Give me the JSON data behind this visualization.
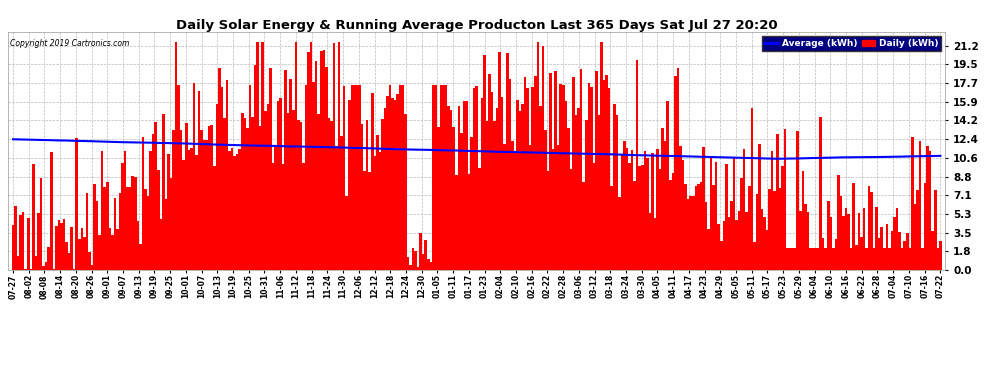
{
  "title": "Daily Solar Energy & Running Average Producton Last 365 Days Sat Jul 27 20:20",
  "copyright": "Copyright 2019 Cartronics.com",
  "bar_color": "#ff0000",
  "line_color": "#0000ff",
  "background_color": "#ffffff",
  "plot_bg_color": "#ffffff",
  "grid_color": "#bbbbbb",
  "yticks": [
    0.0,
    1.8,
    3.5,
    5.3,
    7.1,
    8.8,
    10.6,
    12.4,
    14.2,
    15.9,
    17.7,
    19.5,
    21.2
  ],
  "ymax": 22.5,
  "legend_labels": [
    "Average (kWh)",
    "Daily (kWh)"
  ],
  "legend_colors": [
    "#0000ff",
    "#ff0000"
  ],
  "legend_bg": "#000080",
  "x_labels": [
    "07-27",
    "08-02",
    "08-08",
    "08-14",
    "08-20",
    "08-26",
    "09-01",
    "09-07",
    "09-13",
    "09-19",
    "09-25",
    "10-01",
    "10-07",
    "10-13",
    "10-19",
    "10-25",
    "10-31",
    "11-06",
    "11-12",
    "11-18",
    "11-24",
    "11-30",
    "12-06",
    "12-12",
    "12-18",
    "12-24",
    "12-30",
    "01-05",
    "01-11",
    "01-17",
    "01-23",
    "02-04",
    "02-10",
    "02-16",
    "02-22",
    "02-28",
    "03-06",
    "03-12",
    "03-18",
    "03-24",
    "03-30",
    "04-05",
    "04-11",
    "04-17",
    "04-23",
    "04-29",
    "05-05",
    "05-11",
    "05-17",
    "05-23",
    "05-29",
    "06-04",
    "06-10",
    "06-16",
    "06-22",
    "06-28",
    "07-04",
    "07-10",
    "07-16",
    "07-22"
  ]
}
